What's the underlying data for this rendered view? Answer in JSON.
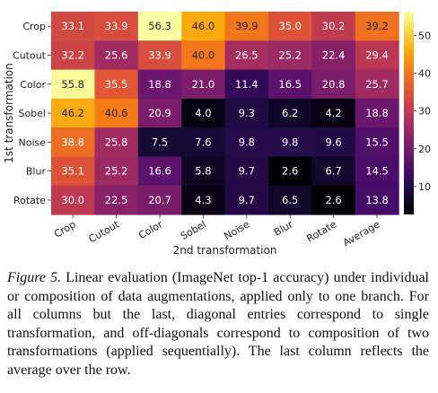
{
  "chart_data": {
    "type": "heatmap",
    "rows": [
      "Crop",
      "Cutout",
      "Color",
      "Sobel",
      "Noise",
      "Blur",
      "Rotate"
    ],
    "columns": [
      "Crop",
      "Cutout",
      "Color",
      "Sobel",
      "Noise",
      "Blur",
      "Rotate",
      "Average"
    ],
    "values": [
      [
        33.1,
        33.9,
        56.3,
        46.0,
        39.9,
        35.0,
        30.2,
        39.2
      ],
      [
        32.2,
        25.6,
        33.9,
        40.0,
        26.5,
        25.2,
        22.4,
        29.4
      ],
      [
        55.8,
        35.5,
        18.8,
        21.0,
        11.4,
        16.5,
        20.8,
        25.7
      ],
      [
        46.2,
        40.6,
        20.9,
        4.0,
        9.3,
        6.2,
        4.2,
        18.8
      ],
      [
        38.8,
        25.8,
        7.5,
        7.6,
        9.8,
        9.8,
        9.6,
        15.5
      ],
      [
        35.1,
        25.2,
        16.6,
        5.8,
        9.7,
        2.6,
        6.7,
        14.5
      ],
      [
        30.0,
        22.5,
        20.7,
        4.3,
        9.7,
        6.5,
        2.6,
        13.8
      ]
    ],
    "value_labels": [
      [
        "33.1",
        "33.9",
        "56.3",
        "46.0",
        "39.9",
        "35.0",
        "30.2",
        "39.2"
      ],
      [
        "32.2",
        "25.6",
        "33.9",
        "40.0",
        "26.5",
        "25.2",
        "22.4",
        "29.4"
      ],
      [
        "55.8",
        "35.5",
        "18.8",
        "21.0",
        "11.4",
        "16.5",
        "20.8",
        "25.7"
      ],
      [
        "46.2",
        "40.6",
        "20.9",
        "4.0",
        "9.3",
        "6.2",
        "4.2",
        "18.8"
      ],
      [
        "38.8",
        "25.8",
        "7.5",
        "7.6",
        "9.8",
        "9.8",
        "9.6",
        "15.5"
      ],
      [
        "35.1",
        "25.2",
        "16.6",
        "5.8",
        "9.7",
        "2.6",
        "6.7",
        "14.5"
      ],
      [
        "30.0",
        "22.5",
        "20.7",
        "4.3",
        "9.7",
        "6.5",
        "2.6",
        "13.8"
      ]
    ],
    "xlabel": "2nd transformation",
    "ylabel": "1st transformation",
    "colormap": "inferno",
    "vmin": 2.6,
    "vmax": 56.3,
    "colorbar_ticks": [
      "10",
      "20",
      "30",
      "40",
      "50"
    ]
  },
  "caption": {
    "lead": "Figure 5.",
    "text": "Linear evaluation (ImageNet top-1 accuracy) under individual or composition of data augmentations, applied only to one branch. For all columns but the last, diagonal entries correspond to single transformation, and off-diagonals correspond to composition of two transformations (applied sequentially). The last column reflects the average over the row."
  }
}
